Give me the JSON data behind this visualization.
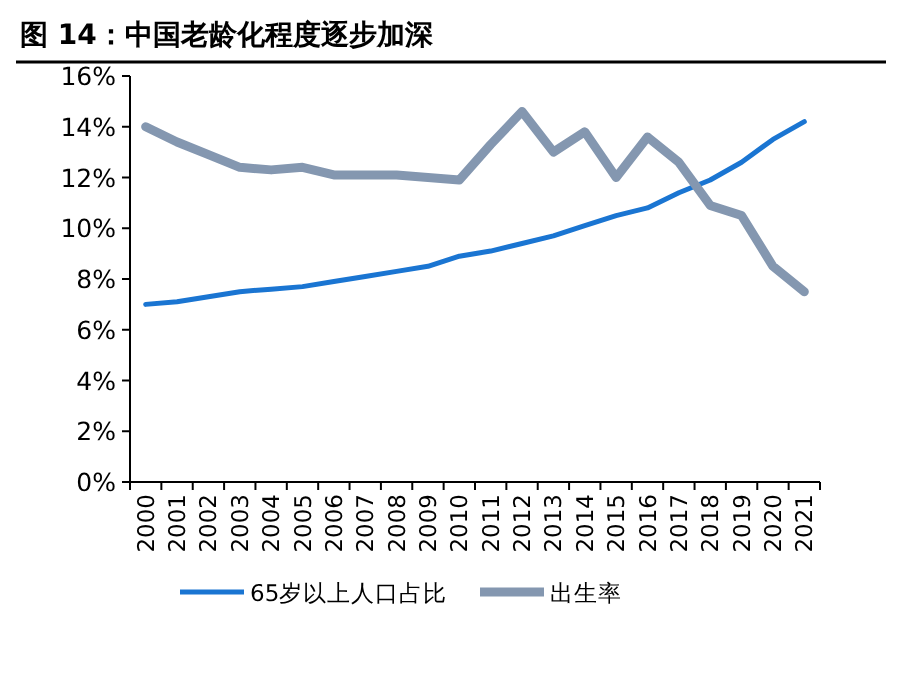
{
  "chart_data": {
    "type": "line",
    "title": "图 14：中国老龄化程度逐步加深",
    "categories": [
      "2000",
      "2001",
      "2002",
      "2003",
      "2004",
      "2005",
      "2006",
      "2007",
      "2008",
      "2009",
      "2010",
      "2011",
      "2012",
      "2013",
      "2014",
      "2015",
      "2016",
      "2017",
      "2018",
      "2019",
      "2020",
      "2021"
    ],
    "series": [
      {
        "name": "65岁以上人口占比",
        "color": "#1a75d2",
        "values": [
          7.0,
          7.1,
          7.3,
          7.5,
          7.6,
          7.7,
          7.9,
          8.1,
          8.3,
          8.5,
          8.9,
          9.1,
          9.4,
          9.7,
          10.1,
          10.5,
          10.8,
          11.4,
          11.9,
          12.6,
          13.5,
          14.2
        ]
      },
      {
        "name": "出生率",
        "color": "#8497b0",
        "values": [
          14.0,
          13.4,
          12.9,
          12.4,
          12.3,
          12.4,
          12.1,
          12.1,
          12.1,
          12.0,
          11.9,
          13.3,
          14.6,
          13.0,
          13.8,
          12.0,
          13.6,
          12.6,
          10.9,
          10.5,
          8.5,
          7.5
        ]
      }
    ],
    "ylim": [
      0,
      16
    ],
    "yticks": [
      {
        "value": 0,
        "label": "0%"
      },
      {
        "value": 2,
        "label": "2%"
      },
      {
        "value": 4,
        "label": "4%"
      },
      {
        "value": 6,
        "label": "6%"
      },
      {
        "value": 8,
        "label": "8%"
      },
      {
        "value": 10,
        "label": "10%"
      },
      {
        "value": 12,
        "label": "12%"
      },
      {
        "value": 14,
        "label": "14%"
      },
      {
        "value": 16,
        "label": "16%"
      }
    ],
    "grid": false,
    "legend": "bottom",
    "marker": "none",
    "line_style": "solid"
  }
}
